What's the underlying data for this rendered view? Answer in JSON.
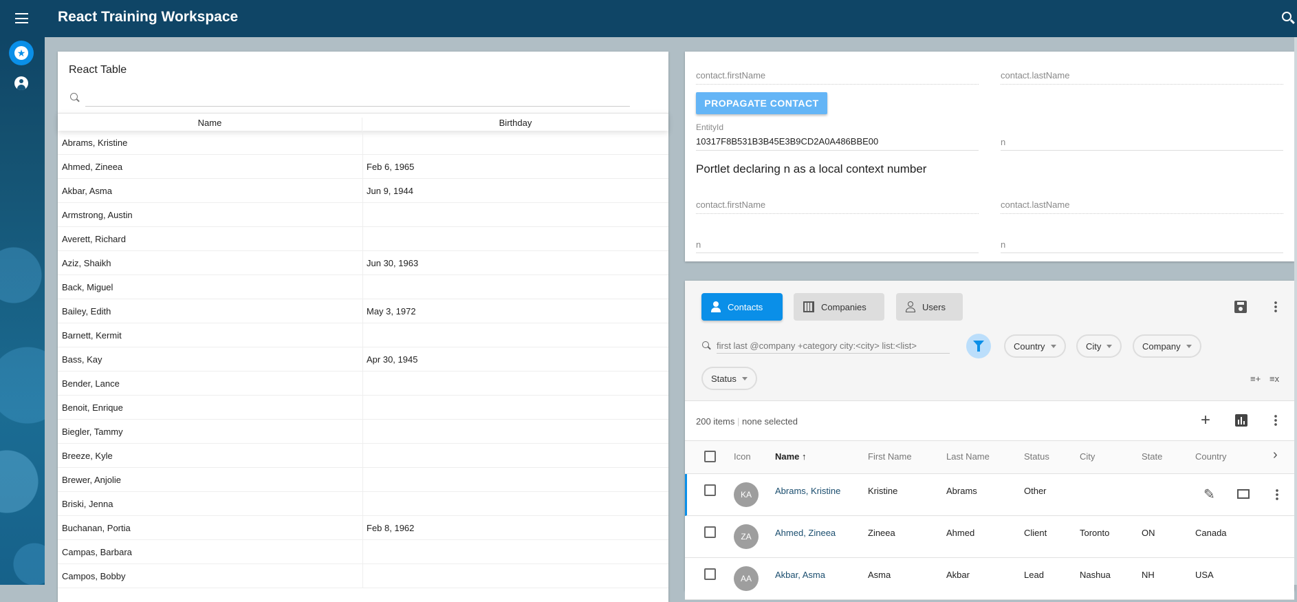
{
  "app": {
    "title": "React Training Workspace",
    "menu_icon": "hamburger-icon",
    "search_icon": "search-icon"
  },
  "sidebar": {
    "items": [
      {
        "icon": "star-icon",
        "active": true
      },
      {
        "icon": "account-circle-icon",
        "active": false
      }
    ]
  },
  "react_table": {
    "title": "React Table",
    "search_value": "",
    "columns": [
      "Name",
      "Birthday"
    ],
    "rows": [
      [
        "Abrams, Kristine",
        ""
      ],
      [
        "Ahmed, Zineea",
        "Feb 6, 1965"
      ],
      [
        "Akbar, Asma",
        "Jun 9, 1944"
      ],
      [
        "Armstrong, Austin",
        ""
      ],
      [
        "Averett, Richard",
        ""
      ],
      [
        "Aziz, Shaikh",
        "Jun 30, 1963"
      ],
      [
        "Back, Miguel",
        ""
      ],
      [
        "Bailey, Edith",
        "May 3, 1972"
      ],
      [
        "Barnett, Kermit",
        ""
      ],
      [
        "Bass, Kay",
        "Apr 30, 1945"
      ],
      [
        "Bender, Lance",
        ""
      ],
      [
        "Benoit, Enrique",
        ""
      ],
      [
        "Biegler, Tammy",
        ""
      ],
      [
        "Breeze, Kyle",
        ""
      ],
      [
        "Brewer, Anjolie",
        ""
      ],
      [
        "Briski, Jenna",
        ""
      ],
      [
        "Buchanan, Portia",
        "Feb 8, 1962"
      ],
      [
        "Campas, Barbara",
        ""
      ],
      [
        "Campos, Bobby",
        ""
      ]
    ]
  },
  "portlet": {
    "first_name_label": "contact.firstName",
    "last_name_label": "contact.lastName",
    "propagate_label": "PROPAGATE CONTACT",
    "entity_label": "EntityId",
    "entity_value": "10317F8B531B3B45E3B9CD2A0A486BBE00",
    "n_label": "n",
    "heading": "Portlet declaring n as a local context number",
    "first_name_label2": "contact.firstName",
    "last_name_label2": "contact.lastName",
    "n_label2": "n",
    "n_label3": "n",
    "button_color": "#64b5f6"
  },
  "contacts": {
    "tabs": [
      {
        "label": "Contacts",
        "icon": "person-icon",
        "active": true
      },
      {
        "label": "Companies",
        "icon": "building-icon",
        "active": false
      },
      {
        "label": "Users",
        "icon": "person-outline-icon",
        "active": false
      }
    ],
    "search_placeholder": "first last @company +category city:<city> list:<list>",
    "filters": [
      "Country",
      "City",
      "Company",
      "Status"
    ],
    "count_text": "200 items",
    "selection_text": "none selected",
    "columns": [
      "Icon",
      "Name",
      "First Name",
      "Last Name",
      "Status",
      "City",
      "State",
      "Country"
    ],
    "sort": {
      "column": "Name",
      "direction": "asc"
    },
    "rows": [
      {
        "initials": "KA",
        "name": "Abrams, Kristine",
        "first": "Kristine",
        "last": "Abrams",
        "status": "Other",
        "city": "",
        "state": "",
        "country": "",
        "selected": true
      },
      {
        "initials": "ZA",
        "name": "Ahmed, Zineea",
        "first": "Zineea",
        "last": "Ahmed",
        "status": "Client",
        "city": "Toronto",
        "state": "ON",
        "country": "Canada"
      },
      {
        "initials": "AA",
        "name": "Akbar, Asma",
        "first": "Asma",
        "last": "Akbar",
        "status": "Lead",
        "city": "Nashua",
        "state": "NH",
        "country": "USA"
      }
    ],
    "accent": "#0a8fe8"
  }
}
